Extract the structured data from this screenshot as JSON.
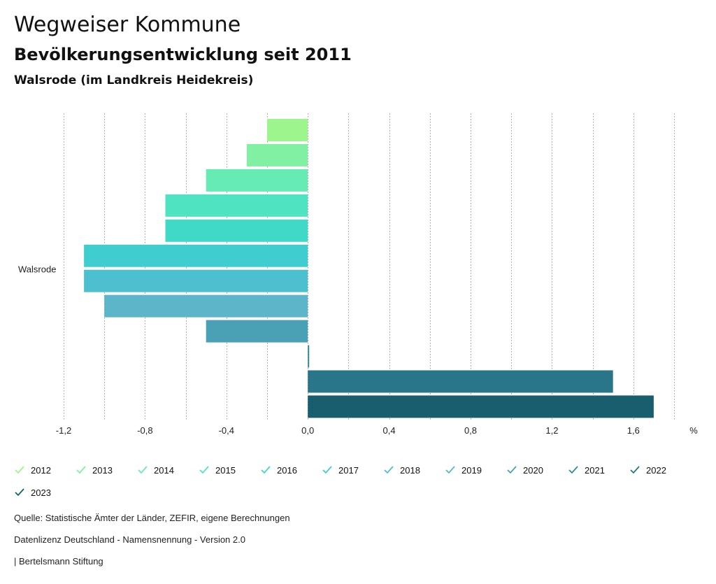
{
  "header": {
    "title": "Wegweiser Kommune",
    "subtitle": "Bevölkerungsentwicklung seit 2011",
    "region": "Walsrode (im Landkreis Heidekreis)"
  },
  "chart_data": {
    "type": "bar",
    "orientation": "horizontal",
    "categories": [
      "Walsrode"
    ],
    "series": [
      {
        "name": "2012",
        "values": [
          -0.2
        ],
        "color": "#9cf58d"
      },
      {
        "name": "2013",
        "values": [
          -0.3
        ],
        "color": "#82f0a2"
      },
      {
        "name": "2014",
        "values": [
          -0.5
        ],
        "color": "#66ebb5"
      },
      {
        "name": "2015",
        "values": [
          -0.7
        ],
        "color": "#50e3c2"
      },
      {
        "name": "2016",
        "values": [
          -0.7
        ],
        "color": "#40d9c8"
      },
      {
        "name": "2017",
        "values": [
          -1.1
        ],
        "color": "#3fcdd0"
      },
      {
        "name": "2018",
        "values": [
          -1.1
        ],
        "color": "#4cc0cf"
      },
      {
        "name": "2019",
        "values": [
          -1.0
        ],
        "color": "#5cb5c8"
      },
      {
        "name": "2020",
        "values": [
          -0.5
        ],
        "color": "#4aa0b4"
      },
      {
        "name": "2021",
        "values": [
          0.0
        ],
        "color": "#338a9a"
      },
      {
        "name": "2022",
        "values": [
          1.5
        ],
        "color": "#2a7689"
      },
      {
        "name": "2023",
        "values": [
          1.7
        ],
        "color": "#195e6f"
      }
    ],
    "xlim": [
      -1.2,
      1.8
    ],
    "x_ticks": [
      -1.2,
      -0.8,
      -0.4,
      0.0,
      0.4,
      0.8,
      1.2,
      1.6
    ],
    "x_tick_labels": [
      "-1,2",
      "-0,8",
      "-0,4",
      "0,0",
      "0,4",
      "0,8",
      "1,2",
      "1,6"
    ],
    "unit_label": "%",
    "grid": "vertical dotted",
    "legend_position": "bottom"
  },
  "footer": {
    "source": "Quelle: Statistische Ämter der Länder, ZEFIR, eigene Berechnungen",
    "license": "Datenlizenz Deutschland - Namensnennung - Version 2.0",
    "credit": "| Bertelsmann Stiftung"
  }
}
